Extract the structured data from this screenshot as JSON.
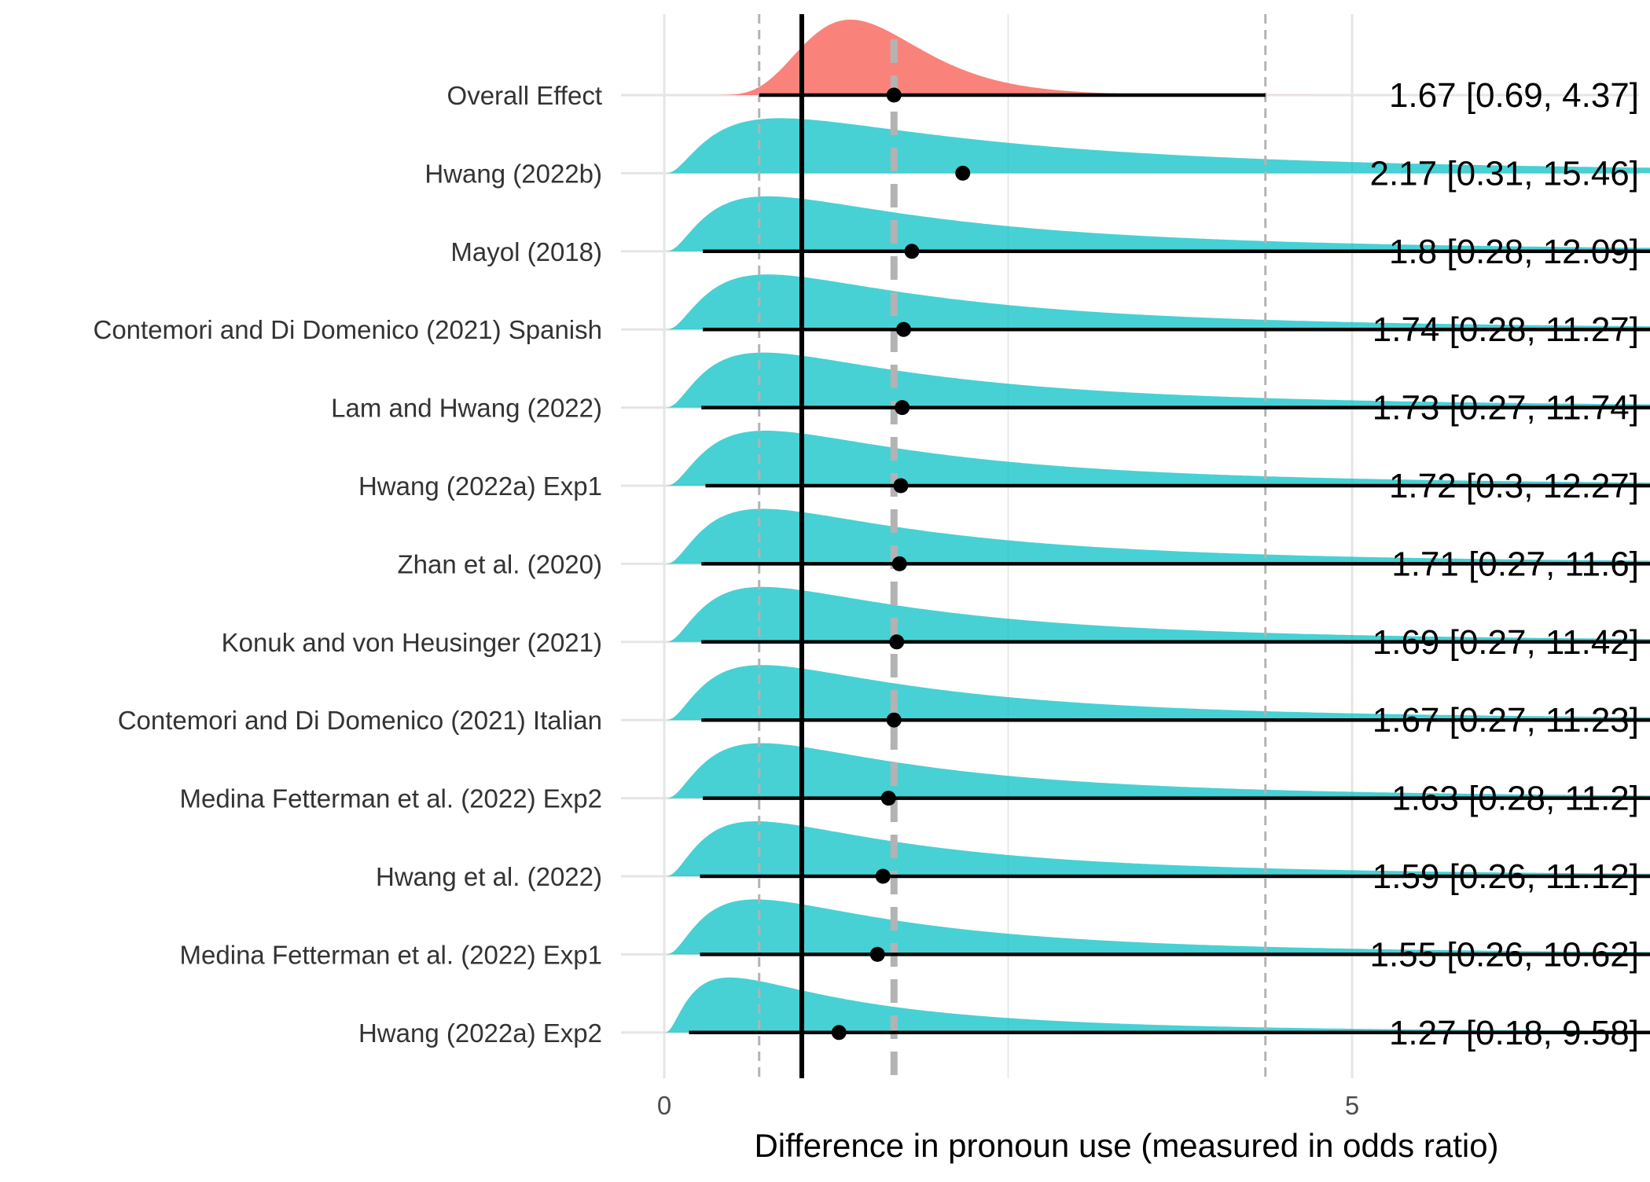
{
  "chart_data": {
    "type": "forest-density",
    "xlabel": "Difference in pronoun use (measured in odds ratio)",
    "ylabel": "",
    "title": "",
    "xlim": [
      0,
      14.2
    ],
    "xticks": [
      0,
      5,
      10
    ],
    "grid": true,
    "reference_line": 1,
    "overall_estimate": 1.67,
    "overall_interval": [
      0.69,
      4.37
    ],
    "colors": {
      "overall_fill": "#f8766d",
      "study_fill": "#00bfc4",
      "grid": "#e5e5e5",
      "ci_line": "#000000",
      "dashed": "#b3b3b3"
    },
    "rows": [
      {
        "label": "Overall Effect",
        "estimate": 1.67,
        "lower": 0.69,
        "upper": 4.37,
        "text": "1.67 [0.69, 4.37]",
        "overall": true
      },
      {
        "label": "Hwang (2022b)",
        "estimate": 2.17,
        "lower": 0.31,
        "upper": 15.46,
        "text": "2.17 [0.31, 15.46]"
      },
      {
        "label": "Mayol (2018)",
        "estimate": 1.8,
        "lower": 0.28,
        "upper": 12.09,
        "text": "1.8 [0.28, 12.09]"
      },
      {
        "label": "Contemori and Di Domenico (2021) Spanish",
        "estimate": 1.74,
        "lower": 0.28,
        "upper": 11.27,
        "text": "1.74 [0.28, 11.27]"
      },
      {
        "label": "Lam and Hwang (2022)",
        "estimate": 1.73,
        "lower": 0.27,
        "upper": 11.74,
        "text": "1.73 [0.27, 11.74]"
      },
      {
        "label": "Hwang (2022a) Exp1",
        "estimate": 1.72,
        "lower": 0.3,
        "upper": 12.27,
        "text": "1.72 [0.3, 12.27]"
      },
      {
        "label": "Zhan et al. (2020)",
        "estimate": 1.71,
        "lower": 0.27,
        "upper": 11.6,
        "text": "1.71 [0.27, 11.6]"
      },
      {
        "label": "Konuk and von Heusinger (2021)",
        "estimate": 1.69,
        "lower": 0.27,
        "upper": 11.42,
        "text": "1.69 [0.27, 11.42]"
      },
      {
        "label": "Contemori and Di Domenico (2021) Italian",
        "estimate": 1.67,
        "lower": 0.27,
        "upper": 11.23,
        "text": "1.67 [0.27, 11.23]"
      },
      {
        "label": "Medina Fetterman et al. (2022) Exp2",
        "estimate": 1.63,
        "lower": 0.28,
        "upper": 11.2,
        "text": "1.63 [0.28, 11.2]"
      },
      {
        "label": "Hwang et al. (2022)",
        "estimate": 1.59,
        "lower": 0.26,
        "upper": 11.12,
        "text": "1.59 [0.26, 11.12]"
      },
      {
        "label": "Medina Fetterman et al. (2022) Exp1",
        "estimate": 1.55,
        "lower": 0.26,
        "upper": 10.62,
        "text": "1.55 [0.26, 10.62]"
      },
      {
        "label": "Hwang (2022a) Exp2",
        "estimate": 1.27,
        "lower": 0.18,
        "upper": 9.58,
        "text": "1.27 [0.18, 9.58]"
      }
    ]
  }
}
